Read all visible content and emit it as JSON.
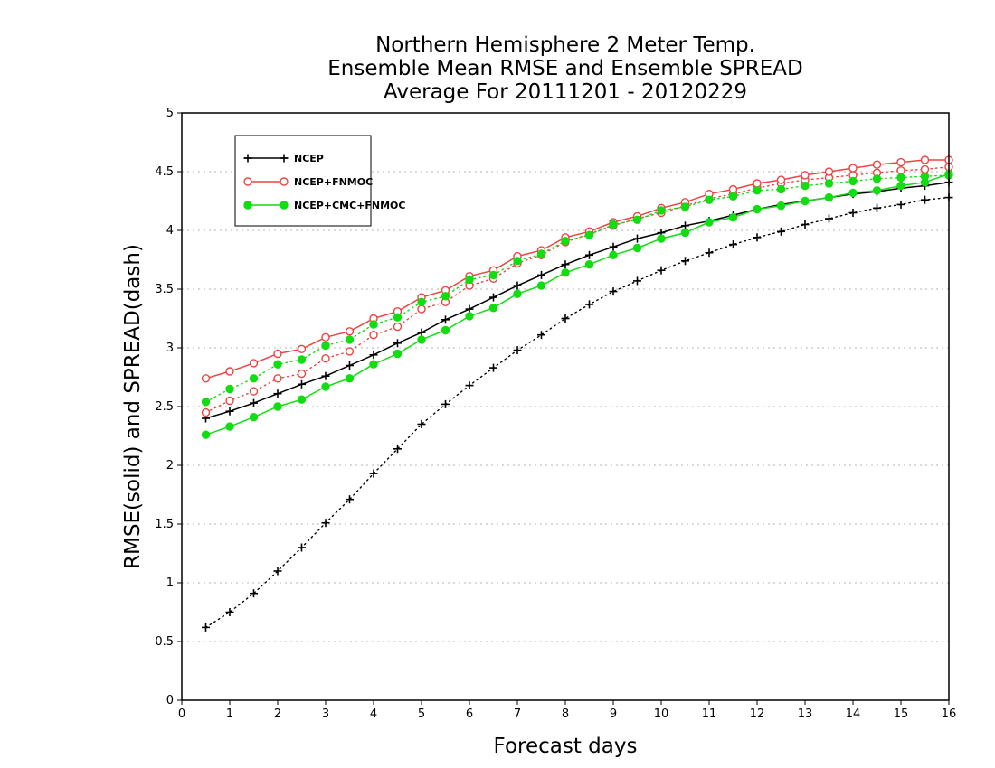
{
  "chart_data": {
    "type": "line",
    "title": [
      "Northern Hemisphere 2 Meter Temp.",
      "Ensemble Mean RMSE and Ensemble SPREAD",
      "Average For 20111201 - 20120229"
    ],
    "xlabel": "Forecast days",
    "ylabel": "RMSE(solid) and SPREAD(dash)",
    "xlim": [
      0,
      16
    ],
    "ylim": [
      0,
      5
    ],
    "xticks": [
      "0",
      "1",
      "2",
      "3",
      "4",
      "5",
      "6",
      "7",
      "8",
      "9",
      "10",
      "11",
      "12",
      "13",
      "14",
      "15",
      "16"
    ],
    "yticks": [
      "0",
      "0.5",
      "1",
      "1.5",
      "2",
      "2.5",
      "3",
      "3.5",
      "4",
      "4.5",
      "5"
    ],
    "grid": true,
    "legend_position": "top-left",
    "x": [
      0.5,
      1,
      1.5,
      2,
      2.5,
      3,
      3.5,
      4,
      4.5,
      5,
      5.5,
      6,
      6.5,
      7,
      7.5,
      8,
      8.5,
      9,
      9.5,
      10,
      10.5,
      11,
      11.5,
      12,
      12.5,
      13,
      13.5,
      14,
      14.5,
      15,
      15.5,
      16
    ],
    "series": [
      {
        "name": "NCEP",
        "color": "#000000",
        "marker": "plus",
        "rmse": [
          2.4,
          2.46,
          2.53,
          2.61,
          2.69,
          2.76,
          2.85,
          2.94,
          3.04,
          3.13,
          3.24,
          3.33,
          3.43,
          3.53,
          3.62,
          3.71,
          3.79,
          3.86,
          3.93,
          3.98,
          4.04,
          4.08,
          4.13,
          4.18,
          4.22,
          4.25,
          4.28,
          4.31,
          4.33,
          4.36,
          4.38,
          4.41
        ],
        "spread": [
          0.62,
          0.75,
          0.91,
          1.1,
          1.3,
          1.51,
          1.71,
          1.93,
          2.14,
          2.35,
          2.52,
          2.68,
          2.83,
          2.98,
          3.11,
          3.25,
          3.37,
          3.48,
          3.57,
          3.66,
          3.74,
          3.81,
          3.88,
          3.94,
          3.99,
          4.05,
          4.1,
          4.15,
          4.19,
          4.22,
          4.26,
          4.28
        ]
      },
      {
        "name": "NCEP+FNMOC",
        "color": "#ee4444",
        "marker": "open-circle",
        "rmse": [
          2.74,
          2.8,
          2.87,
          2.95,
          2.99,
          3.09,
          3.14,
          3.25,
          3.31,
          3.43,
          3.49,
          3.61,
          3.66,
          3.78,
          3.83,
          3.94,
          3.99,
          4.07,
          4.12,
          4.19,
          4.24,
          4.31,
          4.35,
          4.4,
          4.43,
          4.47,
          4.5,
          4.53,
          4.56,
          4.58,
          4.6,
          4.6
        ],
        "spread": [
          2.45,
          2.55,
          2.63,
          2.74,
          2.78,
          2.91,
          2.97,
          3.11,
          3.18,
          3.33,
          3.39,
          3.53,
          3.59,
          3.72,
          3.79,
          3.9,
          3.97,
          4.04,
          4.1,
          4.15,
          4.21,
          4.27,
          4.31,
          4.36,
          4.4,
          4.43,
          4.45,
          4.47,
          4.49,
          4.51,
          4.52,
          4.54
        ]
      },
      {
        "name": "NCEP+CMC+FNMOC",
        "color": "#11dd11",
        "marker": "filled-circle",
        "rmse": [
          2.26,
          2.33,
          2.41,
          2.5,
          2.56,
          2.67,
          2.74,
          2.86,
          2.95,
          3.07,
          3.15,
          3.27,
          3.34,
          3.46,
          3.53,
          3.64,
          3.71,
          3.79,
          3.85,
          3.93,
          3.98,
          4.07,
          4.11,
          4.18,
          4.21,
          4.25,
          4.28,
          4.32,
          4.34,
          4.38,
          4.41,
          4.48
        ],
        "spread": [
          2.54,
          2.65,
          2.74,
          2.86,
          2.9,
          3.02,
          3.07,
          3.2,
          3.26,
          3.39,
          3.44,
          3.58,
          3.62,
          3.74,
          3.8,
          3.91,
          3.96,
          4.05,
          4.09,
          4.17,
          4.2,
          4.26,
          4.29,
          4.34,
          4.35,
          4.38,
          4.4,
          4.42,
          4.44,
          4.45,
          4.46,
          4.47
        ]
      }
    ]
  }
}
